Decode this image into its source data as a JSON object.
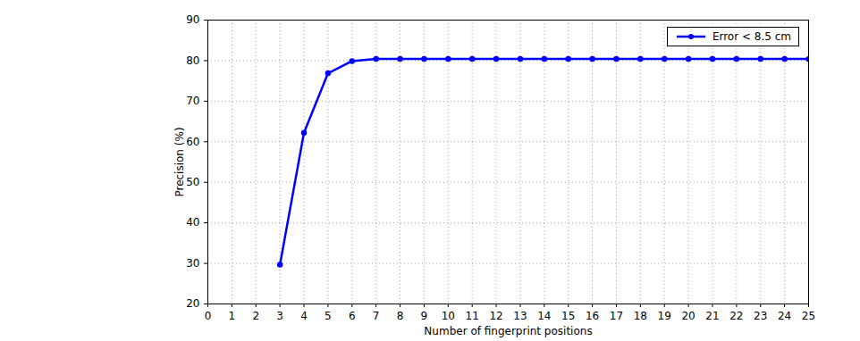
{
  "chart_data": {
    "type": "line",
    "x_label": "Number of fingerprint positions",
    "y_label": "Precision (%)",
    "x": [
      3,
      4,
      5,
      6,
      7,
      8,
      9,
      10,
      11,
      12,
      13,
      14,
      15,
      16,
      17,
      18,
      19,
      20,
      21,
      22,
      23,
      24,
      25
    ],
    "series": [
      {
        "name": "Error < 8.5 cm",
        "color": "#0000ff",
        "marker": "circle",
        "line_style": "solid",
        "values": [
          29.7,
          62.2,
          76.9,
          79.9,
          80.4,
          80.4,
          80.4,
          80.4,
          80.4,
          80.4,
          80.4,
          80.4,
          80.4,
          80.4,
          80.4,
          80.4,
          80.4,
          80.4,
          80.4,
          80.4,
          80.4,
          80.4,
          80.4
        ]
      }
    ],
    "xlim": [
      0,
      25
    ],
    "xticks": [
      0,
      1,
      2,
      3,
      4,
      5,
      6,
      7,
      8,
      9,
      10,
      11,
      12,
      13,
      14,
      15,
      16,
      17,
      18,
      19,
      20,
      21,
      22,
      23,
      24,
      25
    ],
    "ylim": [
      20,
      90
    ],
    "yticks": [
      20,
      30,
      40,
      50,
      60,
      70,
      80,
      90
    ],
    "grid": true,
    "legend": "top right"
  }
}
